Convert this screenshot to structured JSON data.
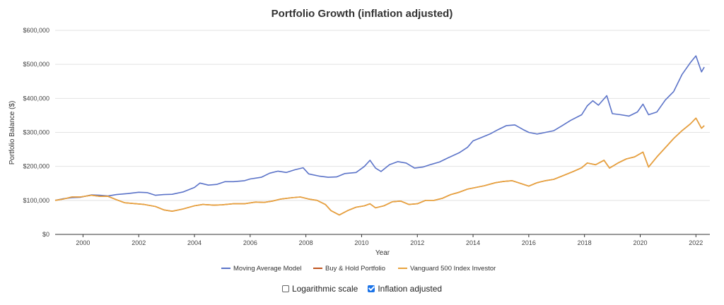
{
  "chart_data": {
    "type": "line",
    "title": "Portfolio Growth (inflation adjusted)",
    "xlabel": "Year",
    "ylabel": "Portfolio Balance ($)",
    "xlim": [
      1999.0,
      2022.5
    ],
    "ylim": [
      0,
      600000
    ],
    "x_ticks": [
      2000,
      2002,
      2004,
      2006,
      2008,
      2010,
      2012,
      2014,
      2016,
      2018,
      2020,
      2022
    ],
    "y_ticks": [
      {
        "value": 0,
        "label": "$0"
      },
      {
        "value": 100000,
        "label": "$100,000"
      },
      {
        "value": 200000,
        "label": "$200,000"
      },
      {
        "value": 300000,
        "label": "$300,000"
      },
      {
        "value": 400000,
        "label": "$400,000"
      },
      {
        "value": 500000,
        "label": "$500,000"
      },
      {
        "value": 600000,
        "label": "$600,000"
      }
    ],
    "grid": true,
    "legend_position": "bottom",
    "series": [
      {
        "name": "Moving Average Model",
        "color": "#5b73c8",
        "points": [
          [
            1999.0,
            100000
          ],
          [
            1999.3,
            105000
          ],
          [
            1999.6,
            108000
          ],
          [
            1999.9,
            109000
          ],
          [
            2000.3,
            116000
          ],
          [
            2000.6,
            115000
          ],
          [
            2000.9,
            113000
          ],
          [
            2001.2,
            117000
          ],
          [
            2001.6,
            120000
          ],
          [
            2002.0,
            124000
          ],
          [
            2002.3,
            123000
          ],
          [
            2002.6,
            115000
          ],
          [
            2002.9,
            117000
          ],
          [
            2003.2,
            118000
          ],
          [
            2003.6,
            125000
          ],
          [
            2004.0,
            138000
          ],
          [
            2004.2,
            151000
          ],
          [
            2004.5,
            145000
          ],
          [
            2004.8,
            147000
          ],
          [
            2005.1,
            155000
          ],
          [
            2005.4,
            155000
          ],
          [
            2005.8,
            158000
          ],
          [
            2006.0,
            163000
          ],
          [
            2006.4,
            168000
          ],
          [
            2006.7,
            180000
          ],
          [
            2007.0,
            186000
          ],
          [
            2007.3,
            182000
          ],
          [
            2007.6,
            190000
          ],
          [
            2007.9,
            196000
          ],
          [
            2008.1,
            178000
          ],
          [
            2008.5,
            171000
          ],
          [
            2008.8,
            168000
          ],
          [
            2009.1,
            169000
          ],
          [
            2009.4,
            179000
          ],
          [
            2009.8,
            182000
          ],
          [
            2010.1,
            200000
          ],
          [
            2010.3,
            218000
          ],
          [
            2010.5,
            195000
          ],
          [
            2010.7,
            185000
          ],
          [
            2011.0,
            205000
          ],
          [
            2011.3,
            214000
          ],
          [
            2011.6,
            210000
          ],
          [
            2011.9,
            195000
          ],
          [
            2012.2,
            198000
          ],
          [
            2012.5,
            206000
          ],
          [
            2012.8,
            213000
          ],
          [
            2013.1,
            225000
          ],
          [
            2013.5,
            240000
          ],
          [
            2013.8,
            256000
          ],
          [
            2014.0,
            275000
          ],
          [
            2014.3,
            285000
          ],
          [
            2014.6,
            295000
          ],
          [
            2014.9,
            308000
          ],
          [
            2015.2,
            320000
          ],
          [
            2015.5,
            322000
          ],
          [
            2015.8,
            308000
          ],
          [
            2016.0,
            300000
          ],
          [
            2016.3,
            295000
          ],
          [
            2016.6,
            300000
          ],
          [
            2016.9,
            305000
          ],
          [
            2017.2,
            320000
          ],
          [
            2017.5,
            335000
          ],
          [
            2017.9,
            352000
          ],
          [
            2018.1,
            378000
          ],
          [
            2018.3,
            393000
          ],
          [
            2018.5,
            380000
          ],
          [
            2018.8,
            408000
          ],
          [
            2019.0,
            355000
          ],
          [
            2019.3,
            352000
          ],
          [
            2019.6,
            348000
          ],
          [
            2019.9,
            360000
          ],
          [
            2020.1,
            383000
          ],
          [
            2020.3,
            352000
          ],
          [
            2020.6,
            360000
          ],
          [
            2020.9,
            395000
          ],
          [
            2021.2,
            420000
          ],
          [
            2021.5,
            470000
          ],
          [
            2021.8,
            505000
          ],
          [
            2022.0,
            525000
          ],
          [
            2022.2,
            478000
          ],
          [
            2022.3,
            492000
          ]
        ]
      },
      {
        "name": "Buy & Hold Portfolio",
        "color": "#c0541d",
        "points": [
          [
            1999.0,
            100000
          ],
          [
            1999.3,
            104000
          ],
          [
            1999.6,
            110000
          ],
          [
            1999.9,
            110000
          ],
          [
            2000.3,
            115000
          ],
          [
            2000.6,
            112000
          ],
          [
            2000.9,
            112000
          ],
          [
            2001.2,
            102000
          ],
          [
            2001.5,
            93000
          ],
          [
            2001.9,
            90000
          ],
          [
            2002.2,
            88000
          ],
          [
            2002.6,
            82000
          ],
          [
            2002.9,
            72000
          ],
          [
            2003.2,
            68000
          ],
          [
            2003.6,
            75000
          ],
          [
            2004.0,
            84000
          ],
          [
            2004.3,
            88000
          ],
          [
            2004.7,
            86000
          ],
          [
            2005.0,
            87000
          ],
          [
            2005.4,
            90000
          ],
          [
            2005.8,
            90000
          ],
          [
            2006.2,
            95000
          ],
          [
            2006.5,
            94000
          ],
          [
            2006.8,
            98000
          ],
          [
            2007.1,
            104000
          ],
          [
            2007.5,
            108000
          ],
          [
            2007.8,
            110000
          ],
          [
            2008.1,
            104000
          ],
          [
            2008.4,
            100000
          ],
          [
            2008.7,
            88000
          ],
          [
            2008.9,
            70000
          ],
          [
            2009.2,
            57000
          ],
          [
            2009.5,
            70000
          ],
          [
            2009.8,
            80000
          ],
          [
            2010.1,
            84000
          ],
          [
            2010.3,
            90000
          ],
          [
            2010.5,
            78000
          ],
          [
            2010.8,
            84000
          ],
          [
            2011.1,
            96000
          ],
          [
            2011.4,
            98000
          ],
          [
            2011.7,
            88000
          ],
          [
            2012.0,
            90000
          ],
          [
            2012.3,
            100000
          ],
          [
            2012.6,
            100000
          ],
          [
            2012.9,
            106000
          ],
          [
            2013.2,
            117000
          ],
          [
            2013.5,
            124000
          ],
          [
            2013.8,
            133000
          ],
          [
            2014.1,
            138000
          ],
          [
            2014.4,
            143000
          ],
          [
            2014.8,
            152000
          ],
          [
            2015.1,
            156000
          ],
          [
            2015.4,
            158000
          ],
          [
            2015.7,
            150000
          ],
          [
            2016.0,
            142000
          ],
          [
            2016.3,
            152000
          ],
          [
            2016.6,
            158000
          ],
          [
            2016.9,
            162000
          ],
          [
            2017.2,
            172000
          ],
          [
            2017.6,
            185000
          ],
          [
            2017.9,
            196000
          ],
          [
            2018.1,
            210000
          ],
          [
            2018.4,
            205000
          ],
          [
            2018.7,
            218000
          ],
          [
            2018.9,
            195000
          ],
          [
            2019.2,
            210000
          ],
          [
            2019.5,
            222000
          ],
          [
            2019.8,
            228000
          ],
          [
            2020.1,
            242000
          ],
          [
            2020.3,
            198000
          ],
          [
            2020.6,
            228000
          ],
          [
            2020.9,
            255000
          ],
          [
            2021.2,
            282000
          ],
          [
            2021.5,
            305000
          ],
          [
            2021.8,
            325000
          ],
          [
            2022.0,
            342000
          ],
          [
            2022.2,
            312000
          ],
          [
            2022.3,
            320000
          ]
        ]
      },
      {
        "name": "Vanguard 500 Index Investor",
        "color": "#e8a33d",
        "points": [
          [
            1999.0,
            100000
          ],
          [
            1999.3,
            104000
          ],
          [
            1999.6,
            110000
          ],
          [
            1999.9,
            110000
          ],
          [
            2000.3,
            115000
          ],
          [
            2000.6,
            112000
          ],
          [
            2000.9,
            112000
          ],
          [
            2001.2,
            102000
          ],
          [
            2001.5,
            93000
          ],
          [
            2001.9,
            90000
          ],
          [
            2002.2,
            88000
          ],
          [
            2002.6,
            82000
          ],
          [
            2002.9,
            72000
          ],
          [
            2003.2,
            68000
          ],
          [
            2003.6,
            75000
          ],
          [
            2004.0,
            84000
          ],
          [
            2004.3,
            88000
          ],
          [
            2004.7,
            86000
          ],
          [
            2005.0,
            87000
          ],
          [
            2005.4,
            90000
          ],
          [
            2005.8,
            90000
          ],
          [
            2006.2,
            95000
          ],
          [
            2006.5,
            94000
          ],
          [
            2006.8,
            98000
          ],
          [
            2007.1,
            104000
          ],
          [
            2007.5,
            108000
          ],
          [
            2007.8,
            110000
          ],
          [
            2008.1,
            104000
          ],
          [
            2008.4,
            100000
          ],
          [
            2008.7,
            88000
          ],
          [
            2008.9,
            70000
          ],
          [
            2009.2,
            57000
          ],
          [
            2009.5,
            70000
          ],
          [
            2009.8,
            80000
          ],
          [
            2010.1,
            84000
          ],
          [
            2010.3,
            90000
          ],
          [
            2010.5,
            78000
          ],
          [
            2010.8,
            84000
          ],
          [
            2011.1,
            96000
          ],
          [
            2011.4,
            98000
          ],
          [
            2011.7,
            88000
          ],
          [
            2012.0,
            90000
          ],
          [
            2012.3,
            100000
          ],
          [
            2012.6,
            100000
          ],
          [
            2012.9,
            106000
          ],
          [
            2013.2,
            117000
          ],
          [
            2013.5,
            124000
          ],
          [
            2013.8,
            133000
          ],
          [
            2014.1,
            138000
          ],
          [
            2014.4,
            143000
          ],
          [
            2014.8,
            152000
          ],
          [
            2015.1,
            156000
          ],
          [
            2015.4,
            158000
          ],
          [
            2015.7,
            150000
          ],
          [
            2016.0,
            142000
          ],
          [
            2016.3,
            152000
          ],
          [
            2016.6,
            158000
          ],
          [
            2016.9,
            162000
          ],
          [
            2017.2,
            172000
          ],
          [
            2017.6,
            185000
          ],
          [
            2017.9,
            196000
          ],
          [
            2018.1,
            210000
          ],
          [
            2018.4,
            205000
          ],
          [
            2018.7,
            218000
          ],
          [
            2018.9,
            195000
          ],
          [
            2019.2,
            210000
          ],
          [
            2019.5,
            222000
          ],
          [
            2019.8,
            228000
          ],
          [
            2020.1,
            242000
          ],
          [
            2020.3,
            198000
          ],
          [
            2020.6,
            228000
          ],
          [
            2020.9,
            255000
          ],
          [
            2021.2,
            282000
          ],
          [
            2021.5,
            305000
          ],
          [
            2021.8,
            325000
          ],
          [
            2022.0,
            342000
          ],
          [
            2022.2,
            312000
          ],
          [
            2022.3,
            320000
          ]
        ]
      }
    ]
  },
  "controls": {
    "log_scale": {
      "label": "Logarithmic scale",
      "checked": false
    },
    "inflation": {
      "label": "Inflation adjusted",
      "checked": true
    }
  }
}
